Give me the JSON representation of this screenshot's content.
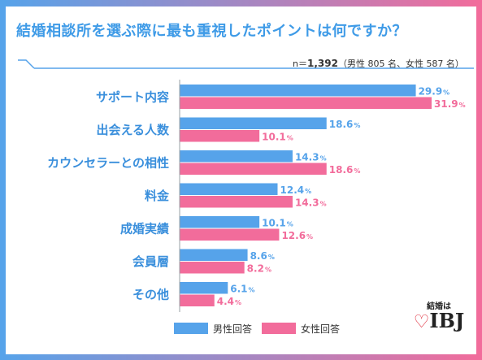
{
  "title": "結婚相談所を選ぶ際に最も重視したポイントは何ですか？",
  "note": {
    "prefix": "n＝",
    "n": "1,392",
    "detail": "（男性 805 名、女性 587 名）"
  },
  "logo": {
    "small_text": "結婚は",
    "brand": "IBJ",
    "heart_icon": "heart-icon"
  },
  "colors": {
    "male": "#56a3ea",
    "female": "#f26c9b",
    "label": "#3a8fdc",
    "axis": "#9aa0a6"
  },
  "chart_data": {
    "type": "bar",
    "orientation": "horizontal",
    "categories": [
      "サポート内容",
      "出会える人数",
      "カウンセラーとの相性",
      "料金",
      "成婚実績",
      "会員層",
      "その他"
    ],
    "series": [
      {
        "name": "男性回答",
        "values": [
          29.9,
          18.6,
          14.3,
          12.4,
          10.1,
          8.6,
          6.1
        ]
      },
      {
        "name": "女性回答",
        "values": [
          31.9,
          10.1,
          18.6,
          14.3,
          12.6,
          8.2,
          4.4
        ]
      }
    ],
    "unit": "%",
    "xlim": [
      0,
      35
    ],
    "legend_position": "bottom-center",
    "grid": false
  }
}
